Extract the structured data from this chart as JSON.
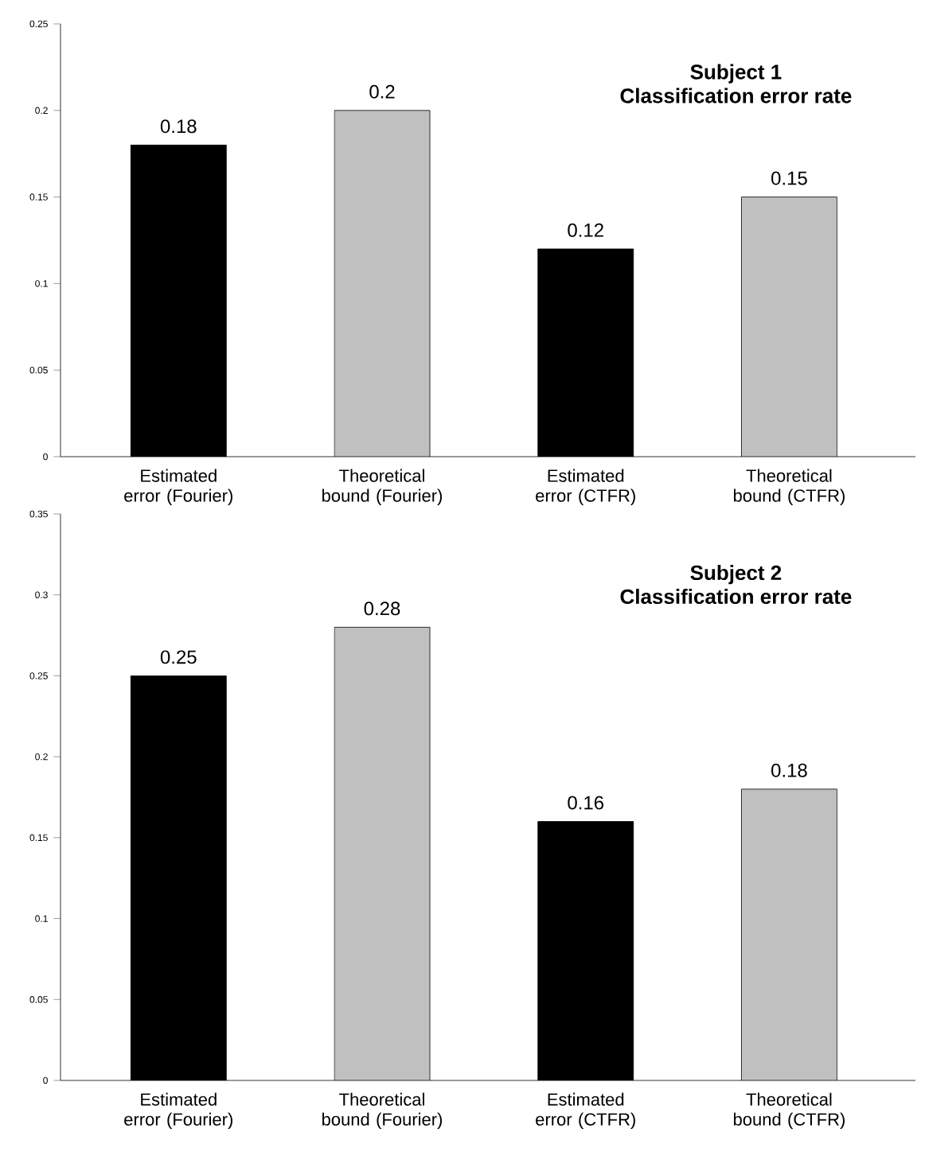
{
  "chart_data": [
    {
      "type": "bar",
      "title": "Subject 1",
      "subtitle": "Classification error rate",
      "categories": [
        "Estimated error (Fourier)",
        "Theoretical bound (Fourier)",
        "Estimated error (CTFR)",
        "Theoretical bound (CTFR)"
      ],
      "values": [
        0.18,
        0.2,
        0.12,
        0.15
      ],
      "colors": [
        "#000000",
        "#c0c0c0",
        "#000000",
        "#c0c0c0"
      ],
      "ylim": [
        0,
        0.25
      ],
      "yticks": [
        0,
        0.05,
        0.1,
        0.15,
        0.2,
        0.25
      ],
      "data_labels": true,
      "grid": false
    },
    {
      "type": "bar",
      "title": "Subject 2",
      "subtitle": "Classification error rate",
      "categories": [
        "Estimated error (Fourier)",
        "Theoretical bound (Fourier)",
        "Estimated error (CTFR)",
        "Theoretical bound (CTFR)"
      ],
      "values": [
        0.25,
        0.28,
        0.16,
        0.18
      ],
      "colors": [
        "#000000",
        "#c0c0c0",
        "#000000",
        "#c0c0c0"
      ],
      "ylim": [
        0,
        0.35
      ],
      "yticks": [
        0,
        0.05,
        0.1,
        0.15,
        0.2,
        0.25,
        0.3,
        0.35
      ],
      "data_labels": true,
      "grid": false
    }
  ]
}
